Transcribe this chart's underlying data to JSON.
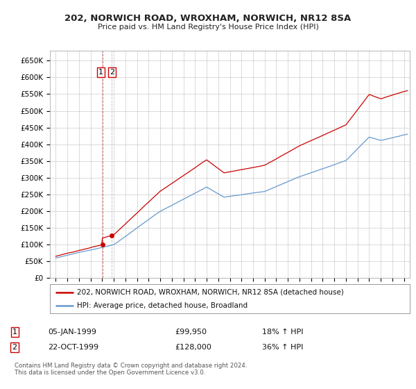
{
  "title_line1": "202, NORWICH ROAD, WROXHAM, NORWICH, NR12 8SA",
  "title_line2": "Price paid vs. HM Land Registry's House Price Index (HPI)",
  "ylabel_ticks": [
    "£0",
    "£50K",
    "£100K",
    "£150K",
    "£200K",
    "£250K",
    "£300K",
    "£350K",
    "£400K",
    "£450K",
    "£500K",
    "£550K",
    "£600K",
    "£650K"
  ],
  "ytick_values": [
    0,
    50000,
    100000,
    150000,
    200000,
    250000,
    300000,
    350000,
    400000,
    450000,
    500000,
    550000,
    600000,
    650000
  ],
  "ylim": [
    0,
    680000
  ],
  "xlim_years": [
    1994.5,
    2025.5
  ],
  "xtick_years": [
    1995,
    1996,
    1997,
    1998,
    1999,
    2000,
    2001,
    2002,
    2003,
    2004,
    2005,
    2006,
    2007,
    2008,
    2009,
    2010,
    2011,
    2012,
    2013,
    2014,
    2015,
    2016,
    2017,
    2018,
    2019,
    2020,
    2021,
    2022,
    2023,
    2024,
    2025
  ],
  "red_line_color": "#cc0000",
  "blue_line_color": "#6699cc",
  "grid_color": "#cccccc",
  "bg_color": "#ffffff",
  "sale1_year": 1999.02,
  "sale1_price": 99950,
  "sale2_year": 1999.81,
  "sale2_price": 128000,
  "sale1_label": "1",
  "sale2_label": "2",
  "legend_line1": "202, NORWICH ROAD, WROXHAM, NORWICH, NR12 8SA (detached house)",
  "legend_line2": "HPI: Average price, detached house, Broadland",
  "table_row1": [
    "1",
    "05-JAN-1999",
    "£99,950",
    "18% ↑ HPI"
  ],
  "table_row2": [
    "2",
    "22-OCT-1999",
    "£128,000",
    "36% ↑ HPI"
  ],
  "footnote": "Contains HM Land Registry data © Crown copyright and database right 2024.\nThis data is licensed under the Open Government Licence v3.0."
}
